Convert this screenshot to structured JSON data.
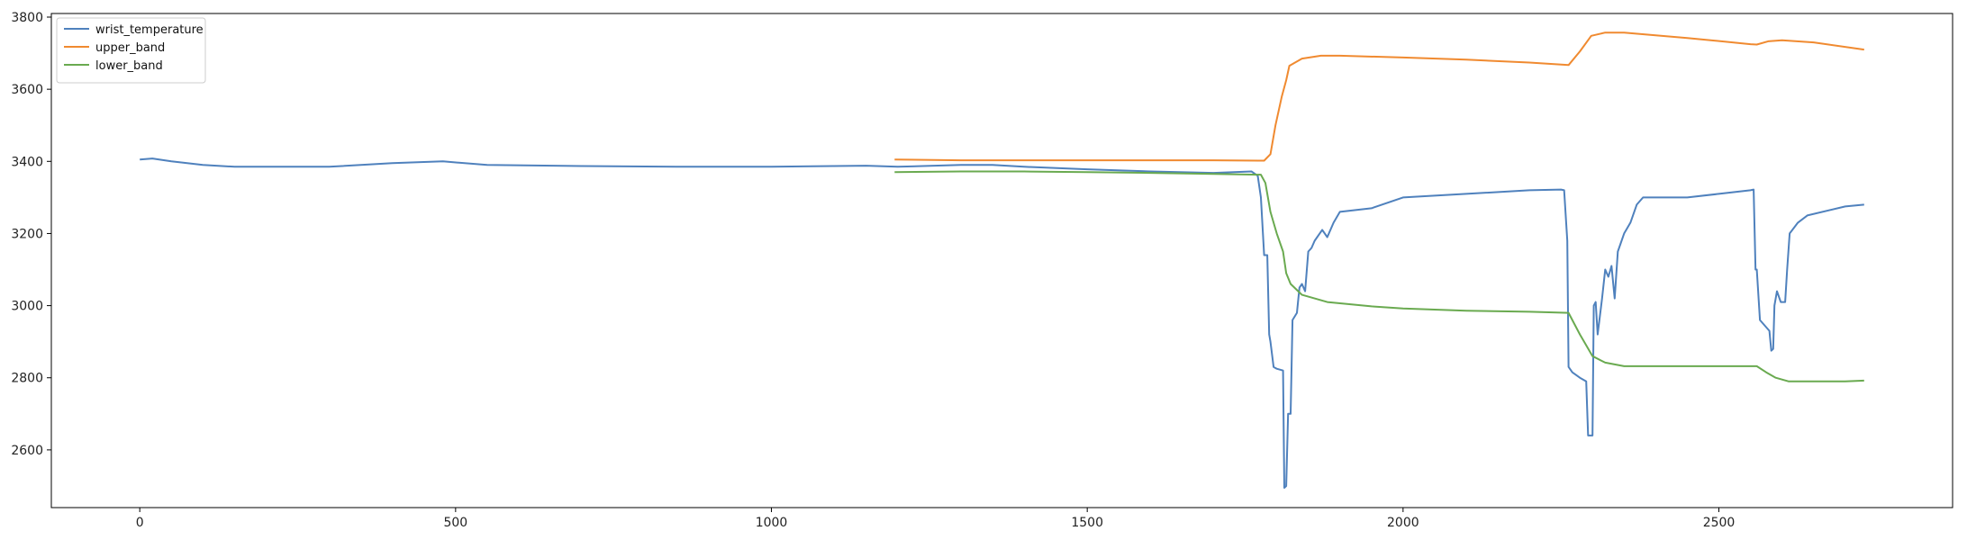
{
  "chart_data": {
    "type": "line",
    "title": "",
    "xlabel": "",
    "ylabel": "",
    "xlim": [
      -140,
      2870
    ],
    "ylim": [
      2440,
      3810
    ],
    "xticks": [
      0,
      500,
      1000,
      1500,
      2000,
      2500
    ],
    "yticks": [
      2600,
      2800,
      3000,
      3200,
      3400,
      3600,
      3800
    ],
    "grid": false,
    "legend": {
      "position": "top-left"
    },
    "series": [
      {
        "name": "wrist_temperature",
        "color": "#4f81bd",
        "points": [
          [
            0,
            3405
          ],
          [
            20,
            3408
          ],
          [
            50,
            3400
          ],
          [
            100,
            3390
          ],
          [
            150,
            3385
          ],
          [
            200,
            3385
          ],
          [
            300,
            3385
          ],
          [
            400,
            3395
          ],
          [
            480,
            3400
          ],
          [
            550,
            3390
          ],
          [
            700,
            3387
          ],
          [
            850,
            3385
          ],
          [
            1000,
            3385
          ],
          [
            1150,
            3388
          ],
          [
            1200,
            3385
          ],
          [
            1300,
            3390
          ],
          [
            1350,
            3390
          ],
          [
            1400,
            3385
          ],
          [
            1500,
            3378
          ],
          [
            1600,
            3372
          ],
          [
            1700,
            3368
          ],
          [
            1760,
            3372
          ],
          [
            1770,
            3360
          ],
          [
            1775,
            3300
          ],
          [
            1780,
            3140
          ],
          [
            1785,
            3140
          ],
          [
            1788,
            2920
          ],
          [
            1790,
            2900
          ],
          [
            1795,
            2830
          ],
          [
            1800,
            2825
          ],
          [
            1810,
            2820
          ],
          [
            1812,
            2495
          ],
          [
            1815,
            2500
          ],
          [
            1818,
            2700
          ],
          [
            1822,
            2700
          ],
          [
            1825,
            2960
          ],
          [
            1832,
            2980
          ],
          [
            1836,
            3050
          ],
          [
            1840,
            3060
          ],
          [
            1845,
            3040
          ],
          [
            1850,
            3150
          ],
          [
            1855,
            3160
          ],
          [
            1860,
            3180
          ],
          [
            1868,
            3200
          ],
          [
            1872,
            3210
          ],
          [
            1880,
            3190
          ],
          [
            1890,
            3230
          ],
          [
            1900,
            3260
          ],
          [
            1950,
            3270
          ],
          [
            2000,
            3300
          ],
          [
            2100,
            3310
          ],
          [
            2200,
            3320
          ],
          [
            2250,
            3322
          ],
          [
            2255,
            3320
          ],
          [
            2260,
            3180
          ],
          [
            2262,
            2830
          ],
          [
            2268,
            2815
          ],
          [
            2280,
            2800
          ],
          [
            2290,
            2790
          ],
          [
            2293,
            2640
          ],
          [
            2300,
            2640
          ],
          [
            2302,
            3000
          ],
          [
            2305,
            3010
          ],
          [
            2308,
            2920
          ],
          [
            2315,
            3020
          ],
          [
            2320,
            3100
          ],
          [
            2325,
            3080
          ],
          [
            2330,
            3110
          ],
          [
            2335,
            3020
          ],
          [
            2340,
            3150
          ],
          [
            2345,
            3175
          ],
          [
            2350,
            3200
          ],
          [
            2360,
            3230
          ],
          [
            2370,
            3280
          ],
          [
            2380,
            3300
          ],
          [
            2400,
            3300
          ],
          [
            2450,
            3300
          ],
          [
            2500,
            3310
          ],
          [
            2550,
            3320
          ],
          [
            2555,
            3322
          ],
          [
            2558,
            3100
          ],
          [
            2560,
            3100
          ],
          [
            2565,
            2960
          ],
          [
            2575,
            2940
          ],
          [
            2580,
            2930
          ],
          [
            2583,
            2875
          ],
          [
            2586,
            2880
          ],
          [
            2588,
            3000
          ],
          [
            2592,
            3040
          ],
          [
            2598,
            3010
          ],
          [
            2605,
            3010
          ],
          [
            2608,
            3100
          ],
          [
            2612,
            3200
          ],
          [
            2625,
            3230
          ],
          [
            2640,
            3250
          ],
          [
            2700,
            3275
          ],
          [
            2730,
            3280
          ]
        ]
      },
      {
        "name": "upper_band",
        "color": "#f08a30",
        "points": [
          [
            1195,
            3405
          ],
          [
            1300,
            3403
          ],
          [
            1500,
            3403
          ],
          [
            1700,
            3403
          ],
          [
            1780,
            3402
          ],
          [
            1790,
            3420
          ],
          [
            1798,
            3500
          ],
          [
            1808,
            3580
          ],
          [
            1815,
            3625
          ],
          [
            1820,
            3665
          ],
          [
            1840,
            3685
          ],
          [
            1870,
            3693
          ],
          [
            1900,
            3693
          ],
          [
            2000,
            3688
          ],
          [
            2100,
            3682
          ],
          [
            2200,
            3674
          ],
          [
            2262,
            3667
          ],
          [
            2280,
            3705
          ],
          [
            2298,
            3748
          ],
          [
            2320,
            3757
          ],
          [
            2350,
            3757
          ],
          [
            2450,
            3742
          ],
          [
            2550,
            3725
          ],
          [
            2560,
            3724
          ],
          [
            2578,
            3733
          ],
          [
            2600,
            3736
          ],
          [
            2650,
            3730
          ],
          [
            2730,
            3710
          ]
        ]
      },
      {
        "name": "lower_band",
        "color": "#6aaa50",
        "points": [
          [
            1195,
            3370
          ],
          [
            1300,
            3372
          ],
          [
            1400,
            3372
          ],
          [
            1500,
            3370
          ],
          [
            1600,
            3368
          ],
          [
            1700,
            3365
          ],
          [
            1775,
            3363
          ],
          [
            1782,
            3340
          ],
          [
            1790,
            3260
          ],
          [
            1800,
            3200
          ],
          [
            1810,
            3150
          ],
          [
            1815,
            3090
          ],
          [
            1822,
            3060
          ],
          [
            1840,
            3030
          ],
          [
            1880,
            3010
          ],
          [
            1950,
            2998
          ],
          [
            2000,
            2992
          ],
          [
            2100,
            2986
          ],
          [
            2200,
            2983
          ],
          [
            2262,
            2980
          ],
          [
            2280,
            2920
          ],
          [
            2300,
            2860
          ],
          [
            2320,
            2842
          ],
          [
            2350,
            2832
          ],
          [
            2450,
            2832
          ],
          [
            2560,
            2832
          ],
          [
            2575,
            2815
          ],
          [
            2590,
            2800
          ],
          [
            2610,
            2790
          ],
          [
            2700,
            2790
          ],
          [
            2730,
            2792
          ]
        ]
      }
    ]
  }
}
